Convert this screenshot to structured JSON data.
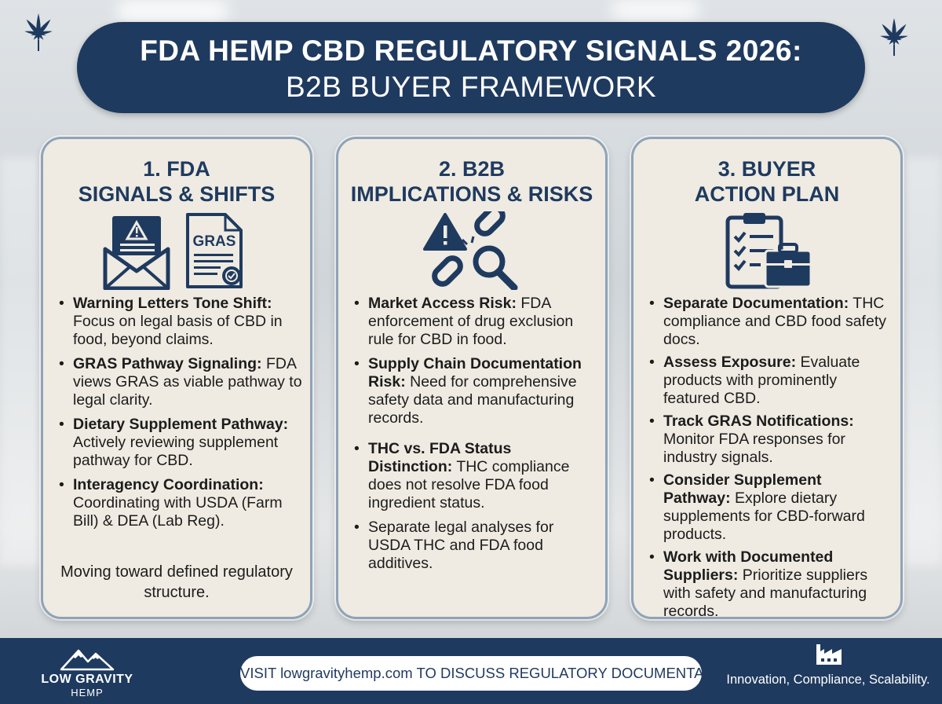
{
  "title": {
    "line1": "FDA HEMP CBD REGULATORY SIGNALS 2026:",
    "line2": "B2B BUYER FRAMEWORK"
  },
  "icons": {
    "leaf": "cannabis-leaf-icon",
    "warning_letter": "warning-envelope-icon",
    "certificate": "gras-certificate-icon",
    "risk": "broken-chain-warning-magnifier-icon",
    "plan": "clipboard-briefcase-icon",
    "factory": "factory-icon",
    "logo": "mountain-logo-icon"
  },
  "colors": {
    "navy": "#1f3a5f",
    "panel": "#efebe2",
    "border": "#8fa3b8"
  },
  "panels": [
    {
      "heading_line1": "1. FDA",
      "heading_line2": "SIGNALS & SHIFTS",
      "icon_label": "GRAS",
      "bullets": [
        {
          "bold": "Warning Letters Tone Shift:",
          "text": " Focus on legal basis of CBD in food, beyond claims."
        },
        {
          "bold": "GRAS Pathway Signaling:",
          "text": " FDA views GRAS as viable pathway to legal clarity."
        },
        {
          "bold": "Dietary Supplement Pathway:",
          "text": " Actively reviewing supplement pathway for CBD."
        },
        {
          "bold": "Interagency Coordination:",
          "text": " Coordinating with USDA (Farm Bill) & DEA (Lab Reg)."
        }
      ],
      "closing": "Moving toward defined regulatory structure."
    },
    {
      "heading_line1": "2. B2B",
      "heading_line2": "IMPLICATIONS & RISKS",
      "bullets": [
        {
          "bold": "Market Access Risk:",
          "text": " FDA enforcement of drug exclusion rule for CBD in food."
        },
        {
          "bold": "Supply Chain Documentation Risk:",
          "text": " Need for comprehensive safety data and manufacturing records."
        },
        {
          "bold": "THC vs. FDA Status Distinction:",
          "text": " THC compliance does not resolve FDA food ingredient status."
        },
        {
          "bold": "",
          "text": "Separate legal analyses for USDA THC and FDA food additives."
        }
      ]
    },
    {
      "heading_line1": "3. BUYER",
      "heading_line2": "ACTION PLAN",
      "bullets": [
        {
          "bold": "Separate Documentation:",
          "text": " THC compliance and CBD food safety docs."
        },
        {
          "bold": "Assess Exposure:",
          "text": " Evaluate products with prominently featured CBD."
        },
        {
          "bold": "Track GRAS Notifications:",
          "text": " Monitor FDA responses for industry signals."
        },
        {
          "bold": "Consider Supplement Pathway:",
          "text": " Explore dietary supplements for CBD-forward products."
        },
        {
          "bold": "Work with Documented Suppliers:",
          "text": " Prioritize suppliers with safety and manufacturing records."
        }
      ]
    }
  ],
  "footer": {
    "logo_name": "LOW GRAVITY",
    "logo_sub": "HEMP",
    "cta": "VISIT lowgravityhemp.com TO DISCUSS REGULATORY DOCUMENTATION",
    "tagline": "Innovation, Compliance, Scalability."
  }
}
